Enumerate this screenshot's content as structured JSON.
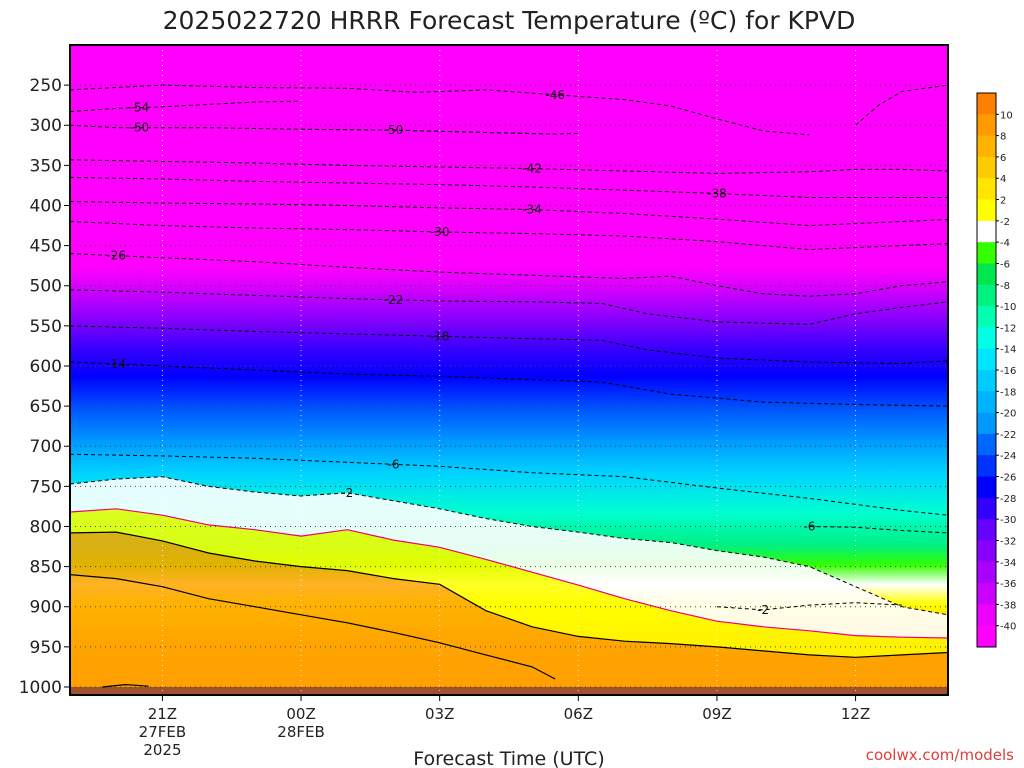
{
  "chart_data": {
    "type": "heatmap",
    "title": "2025022720 HRRR Forecast Temperature (ºC) for KPVD",
    "xlabel": "Forecast Time (UTC)",
    "ylabel": "",
    "credit": "coolwx.com/models",
    "y_axis": {
      "scale": "pressure (hPa), inverted",
      "range": [
        1010,
        200
      ],
      "ticks": [
        "250",
        "300",
        "350",
        "400",
        "450",
        "500",
        "550",
        "600",
        "650",
        "700",
        "750",
        "800",
        "850",
        "900",
        "950",
        "1000"
      ]
    },
    "x_axis": {
      "range": [
        "2025-02-27 19Z",
        "2025-02-28 14Z"
      ],
      "ticks": [
        {
          "hour": 21,
          "label": "21Z",
          "sub1": "27FEB",
          "sub2": "2025"
        },
        {
          "hour": 24,
          "label": "00Z",
          "sub1": "28FEB",
          "sub2": ""
        },
        {
          "hour": 27,
          "label": "03Z",
          "sub1": "",
          "sub2": ""
        },
        {
          "hour": 30,
          "label": "06Z",
          "sub1": "",
          "sub2": ""
        },
        {
          "hour": 33,
          "label": "09Z",
          "sub1": "",
          "sub2": ""
        },
        {
          "hour": 36,
          "label": "12Z",
          "sub1": "",
          "sub2": ""
        }
      ]
    },
    "grid": true,
    "colorbar": {
      "placement": "right",
      "boundaries": [
        12,
        10,
        8,
        6,
        4,
        2,
        -2,
        -4,
        -6,
        -8,
        -10,
        -12,
        -14,
        -16,
        -18,
        -20,
        -22,
        -24,
        -26,
        -28,
        -30,
        -32,
        -34,
        -36,
        -38,
        -40,
        -60
      ],
      "labels": [
        "10",
        "8",
        "6",
        "4",
        "2",
        "-2",
        "-4",
        "-6",
        "-8",
        "-10",
        "-12",
        "-14",
        "-16",
        "-18",
        "-20",
        "-22",
        "-24",
        "-26",
        "-28",
        "-30",
        "-32",
        "-34",
        "-36",
        "-38",
        "-40"
      ],
      "colors": [
        "#ff8000",
        "#ff9a00",
        "#ffb300",
        "#ffcc00",
        "#ffe600",
        "#ffff00",
        "#ffffff",
        "#33ff00",
        "#00e64d",
        "#00f280",
        "#00ffb3",
        "#00ffe6",
        "#00e6ff",
        "#00ccff",
        "#00b3ff",
        "#0099ff",
        "#0066ff",
        "#0033ff",
        "#0000ff",
        "#3300ff",
        "#6600ff",
        "#8800ff",
        "#aa00ff",
        "#cc00ff",
        "#ee00ff",
        "#ff00ff"
      ]
    },
    "isotherms": [
      {
        "temp": -54,
        "label": "-54",
        "label_at": 20.5,
        "points": [
          [
            19,
            283
          ],
          [
            20,
            279
          ],
          [
            21,
            277
          ],
          [
            22,
            274
          ],
          [
            23,
            271
          ],
          [
            24,
            270
          ]
        ]
      },
      {
        "temp": -50,
        "label": "-50",
        "label_at": 20.5,
        "points": [
          [
            19,
            300
          ],
          [
            20,
            303
          ],
          [
            22,
            303
          ],
          [
            24,
            305
          ],
          [
            26,
            306
          ],
          [
            28,
            309
          ],
          [
            29.5,
            311
          ],
          [
            30,
            310
          ]
        ]
      },
      {
        "temp": -50,
        "label": "-50",
        "label_at": 26,
        "points": [
          [
            24,
            305
          ],
          [
            26,
            306
          ],
          [
            28,
            309
          ],
          [
            29.5,
            311
          ]
        ]
      },
      {
        "temp": -46,
        "label": "-46",
        "label_at": 29.5,
        "points": [
          [
            19,
            256
          ],
          [
            21,
            250
          ],
          [
            23,
            253
          ],
          [
            25,
            254
          ],
          [
            26.5,
            259
          ],
          [
            28,
            256
          ],
          [
            29,
            260
          ],
          [
            30,
            264
          ],
          [
            31,
            268
          ],
          [
            32,
            276
          ],
          [
            33,
            292
          ],
          [
            34,
            307
          ],
          [
            35,
            312
          ]
        ]
      },
      {
        "temp": -46,
        "label": "",
        "points": [
          [
            36,
            300
          ],
          [
            36.5,
            275
          ],
          [
            37,
            258
          ],
          [
            38,
            250
          ],
          [
            38.5,
            240
          ],
          [
            39,
            225
          ]
        ]
      },
      {
        "temp": -42,
        "label": "-42",
        "label_at": 29,
        "points": [
          [
            19,
            343
          ],
          [
            21,
            345
          ],
          [
            23,
            347
          ],
          [
            25,
            350
          ],
          [
            27,
            352
          ],
          [
            29,
            354
          ],
          [
            31,
            357
          ],
          [
            33,
            360
          ],
          [
            35,
            358
          ],
          [
            36,
            355
          ],
          [
            37,
            355
          ],
          [
            39,
            359
          ]
        ]
      },
      {
        "temp": -38,
        "label": "-38",
        "label_at": 33,
        "points": [
          [
            19,
            365
          ],
          [
            21,
            367
          ],
          [
            23,
            370
          ],
          [
            25,
            372
          ],
          [
            27,
            374
          ],
          [
            29,
            377
          ],
          [
            31,
            381
          ],
          [
            33,
            385
          ],
          [
            35,
            390
          ],
          [
            37,
            390
          ],
          [
            39,
            390
          ]
        ]
      },
      {
        "temp": -34,
        "label": "-34",
        "label_at": 29,
        "points": [
          [
            19,
            395
          ],
          [
            21,
            397
          ],
          [
            23,
            398
          ],
          [
            25,
            400
          ],
          [
            27,
            403
          ],
          [
            29,
            405
          ],
          [
            31,
            410
          ],
          [
            33,
            417
          ],
          [
            35,
            425
          ],
          [
            37,
            420
          ],
          [
            39,
            415
          ]
        ]
      },
      {
        "temp": -30,
        "label": "-30",
        "label_at": 27,
        "points": [
          [
            19,
            420
          ],
          [
            21,
            425
          ],
          [
            23,
            428
          ],
          [
            25,
            430
          ],
          [
            27,
            433
          ],
          [
            29,
            435
          ],
          [
            31,
            438
          ],
          [
            33,
            445
          ],
          [
            35,
            455
          ],
          [
            37,
            450
          ],
          [
            39,
            445
          ]
        ]
      },
      {
        "temp": -26,
        "label": "-26",
        "label_at": 20,
        "points": [
          [
            19,
            460
          ],
          [
            21,
            465
          ],
          [
            23,
            470
          ],
          [
            25,
            477
          ],
          [
            27,
            483
          ],
          [
            29,
            487
          ],
          [
            31,
            491
          ],
          [
            32,
            488
          ],
          [
            33,
            500
          ],
          [
            34,
            510
          ],
          [
            35,
            513
          ],
          [
            36,
            510
          ],
          [
            37,
            500
          ],
          [
            38,
            495
          ],
          [
            39,
            490
          ]
        ]
      },
      {
        "temp": -22,
        "label": "-22",
        "label_at": 26,
        "points": [
          [
            19,
            505
          ],
          [
            21,
            508
          ],
          [
            23,
            512
          ],
          [
            25,
            516
          ],
          [
            27,
            519
          ],
          [
            29,
            520
          ],
          [
            30.5,
            522
          ],
          [
            31.5,
            535
          ],
          [
            33,
            545
          ],
          [
            35,
            548
          ],
          [
            36,
            535
          ],
          [
            37,
            527
          ],
          [
            38,
            520
          ],
          [
            39,
            510
          ]
        ]
      },
      {
        "temp": -18,
        "label": "-18",
        "label_at": 27,
        "points": [
          [
            19,
            550
          ],
          [
            21,
            553
          ],
          [
            23,
            557
          ],
          [
            25,
            560
          ],
          [
            27,
            563
          ],
          [
            29,
            566
          ],
          [
            30.5,
            568
          ],
          [
            31.5,
            580
          ],
          [
            33,
            590
          ],
          [
            35,
            595
          ],
          [
            37,
            597
          ],
          [
            39,
            590
          ]
        ]
      },
      {
        "temp": -14,
        "label": "-14",
        "label_at": 20,
        "points": [
          [
            19,
            595
          ],
          [
            21,
            600
          ],
          [
            23,
            605
          ],
          [
            25,
            610
          ],
          [
            27,
            613
          ],
          [
            29,
            617
          ],
          [
            30.5,
            620
          ],
          [
            32,
            635
          ],
          [
            34,
            645
          ],
          [
            36,
            648
          ],
          [
            38,
            650
          ],
          [
            39,
            648
          ]
        ]
      },
      {
        "temp": -6,
        "label": "-6",
        "label_at": 26,
        "points": [
          [
            19,
            710
          ],
          [
            21,
            712
          ],
          [
            23,
            715
          ],
          [
            25,
            720
          ],
          [
            27,
            725
          ],
          [
            29,
            733
          ],
          [
            31,
            738
          ],
          [
            33,
            752
          ],
          [
            35,
            765
          ],
          [
            37,
            780
          ],
          [
            39,
            792
          ]
        ]
      },
      {
        "temp": -6,
        "label": "-6",
        "label_at": 35,
        "points": [
          [
            35,
            800
          ],
          [
            36,
            801
          ],
          [
            37,
            805
          ],
          [
            38,
            808
          ],
          [
            39,
            825
          ]
        ]
      },
      {
        "temp": -2,
        "label": "-2",
        "label_at": 25,
        "points": [
          [
            19,
            747
          ],
          [
            20,
            741
          ],
          [
            21,
            738
          ],
          [
            22,
            750
          ],
          [
            23,
            757
          ],
          [
            24,
            762
          ],
          [
            25,
            758
          ],
          [
            26,
            768
          ],
          [
            27,
            778
          ],
          [
            28,
            790
          ],
          [
            29,
            800
          ],
          [
            30,
            807
          ],
          [
            31,
            815
          ],
          [
            32,
            820
          ],
          [
            33,
            830
          ],
          [
            34,
            838
          ],
          [
            35,
            850
          ],
          [
            36,
            875
          ],
          [
            37,
            900
          ],
          [
            38,
            910
          ],
          [
            39,
            914
          ]
        ]
      },
      {
        "temp": -2,
        "label": "-2",
        "label_at": 34,
        "points": [
          [
            33,
            900
          ],
          [
            34,
            904
          ],
          [
            35,
            898
          ],
          [
            36,
            895
          ],
          [
            37,
            898
          ]
        ]
      }
    ],
    "freezing_lines": [
      {
        "temp": 0,
        "color": "#ee0077",
        "points": [
          [
            19,
            782
          ],
          [
            20,
            778
          ],
          [
            21,
            786
          ],
          [
            22,
            798
          ],
          [
            23,
            804
          ],
          [
            24,
            812
          ],
          [
            25,
            804
          ],
          [
            26,
            817
          ],
          [
            27,
            826
          ],
          [
            28,
            841
          ],
          [
            29,
            857
          ],
          [
            30,
            873
          ],
          [
            31,
            890
          ],
          [
            32,
            905
          ],
          [
            33,
            918
          ],
          [
            34,
            925
          ],
          [
            35,
            930
          ],
          [
            36,
            936
          ],
          [
            37,
            938
          ],
          [
            39,
            940
          ]
        ]
      },
      {
        "temp": 4,
        "color": "#000000",
        "points": [
          [
            19,
            808
          ],
          [
            20,
            807
          ],
          [
            21,
            818
          ],
          [
            22,
            833
          ],
          [
            23,
            843
          ],
          [
            24,
            850
          ],
          [
            25,
            855
          ],
          [
            26,
            865
          ],
          [
            27,
            872
          ],
          [
            28,
            905
          ],
          [
            29,
            925
          ],
          [
            30,
            937
          ],
          [
            31,
            943
          ],
          [
            32,
            946
          ],
          [
            33,
            950
          ],
          [
            34,
            955
          ],
          [
            35,
            960
          ],
          [
            36,
            963
          ],
          [
            37,
            960
          ],
          [
            38,
            957
          ],
          [
            39,
            955
          ]
        ]
      },
      {
        "temp": 6,
        "color": "#000000",
        "points": [
          [
            19,
            860
          ],
          [
            20,
            865
          ],
          [
            21,
            875
          ],
          [
            22,
            890
          ],
          [
            23,
            900
          ],
          [
            24,
            910
          ],
          [
            25,
            920
          ],
          [
            26,
            932
          ],
          [
            27,
            945
          ],
          [
            28,
            960
          ],
          [
            29,
            975
          ],
          [
            29.5,
            990
          ]
        ]
      },
      {
        "temp": 8,
        "color": "#000000",
        "points": [
          [
            19.7,
            1000
          ],
          [
            20.2,
            997
          ],
          [
            20.7,
            999
          ]
        ]
      }
    ]
  }
}
